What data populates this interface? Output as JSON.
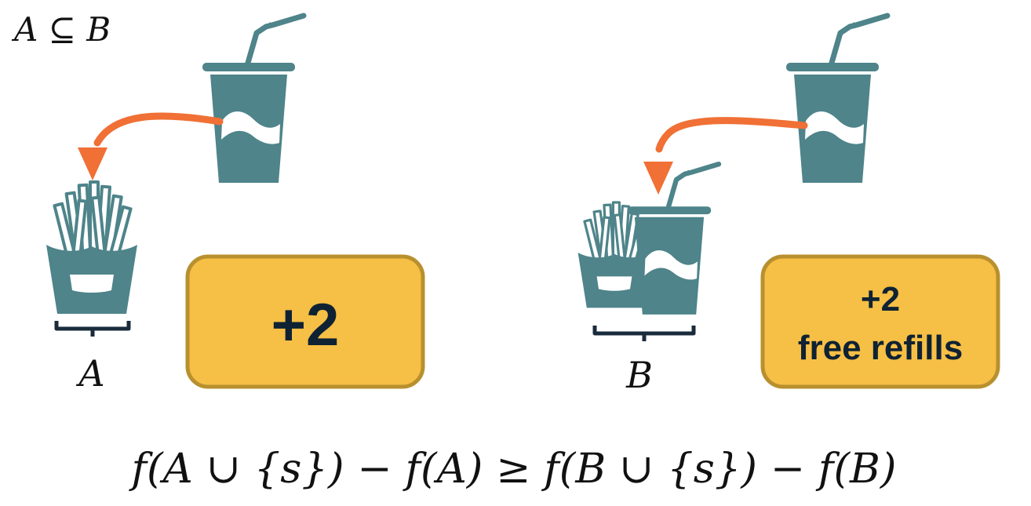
{
  "subset_relation": "A ⊆ B",
  "set_a_label": "A",
  "set_b_label": "B",
  "gain_a": "+2",
  "gain_b_line1": "+2",
  "gain_b_line2": "free refills",
  "inequality": "f(A ∪ {s}) − f(A) ≥ f(B ∪ {s}) − f(B)",
  "colors": {
    "icon": "#4e848a",
    "arrow": "#f07035",
    "badge_fill": "#f6bf45",
    "badge_stroke": "#b8902e",
    "bracket": "#1a2b3c"
  }
}
